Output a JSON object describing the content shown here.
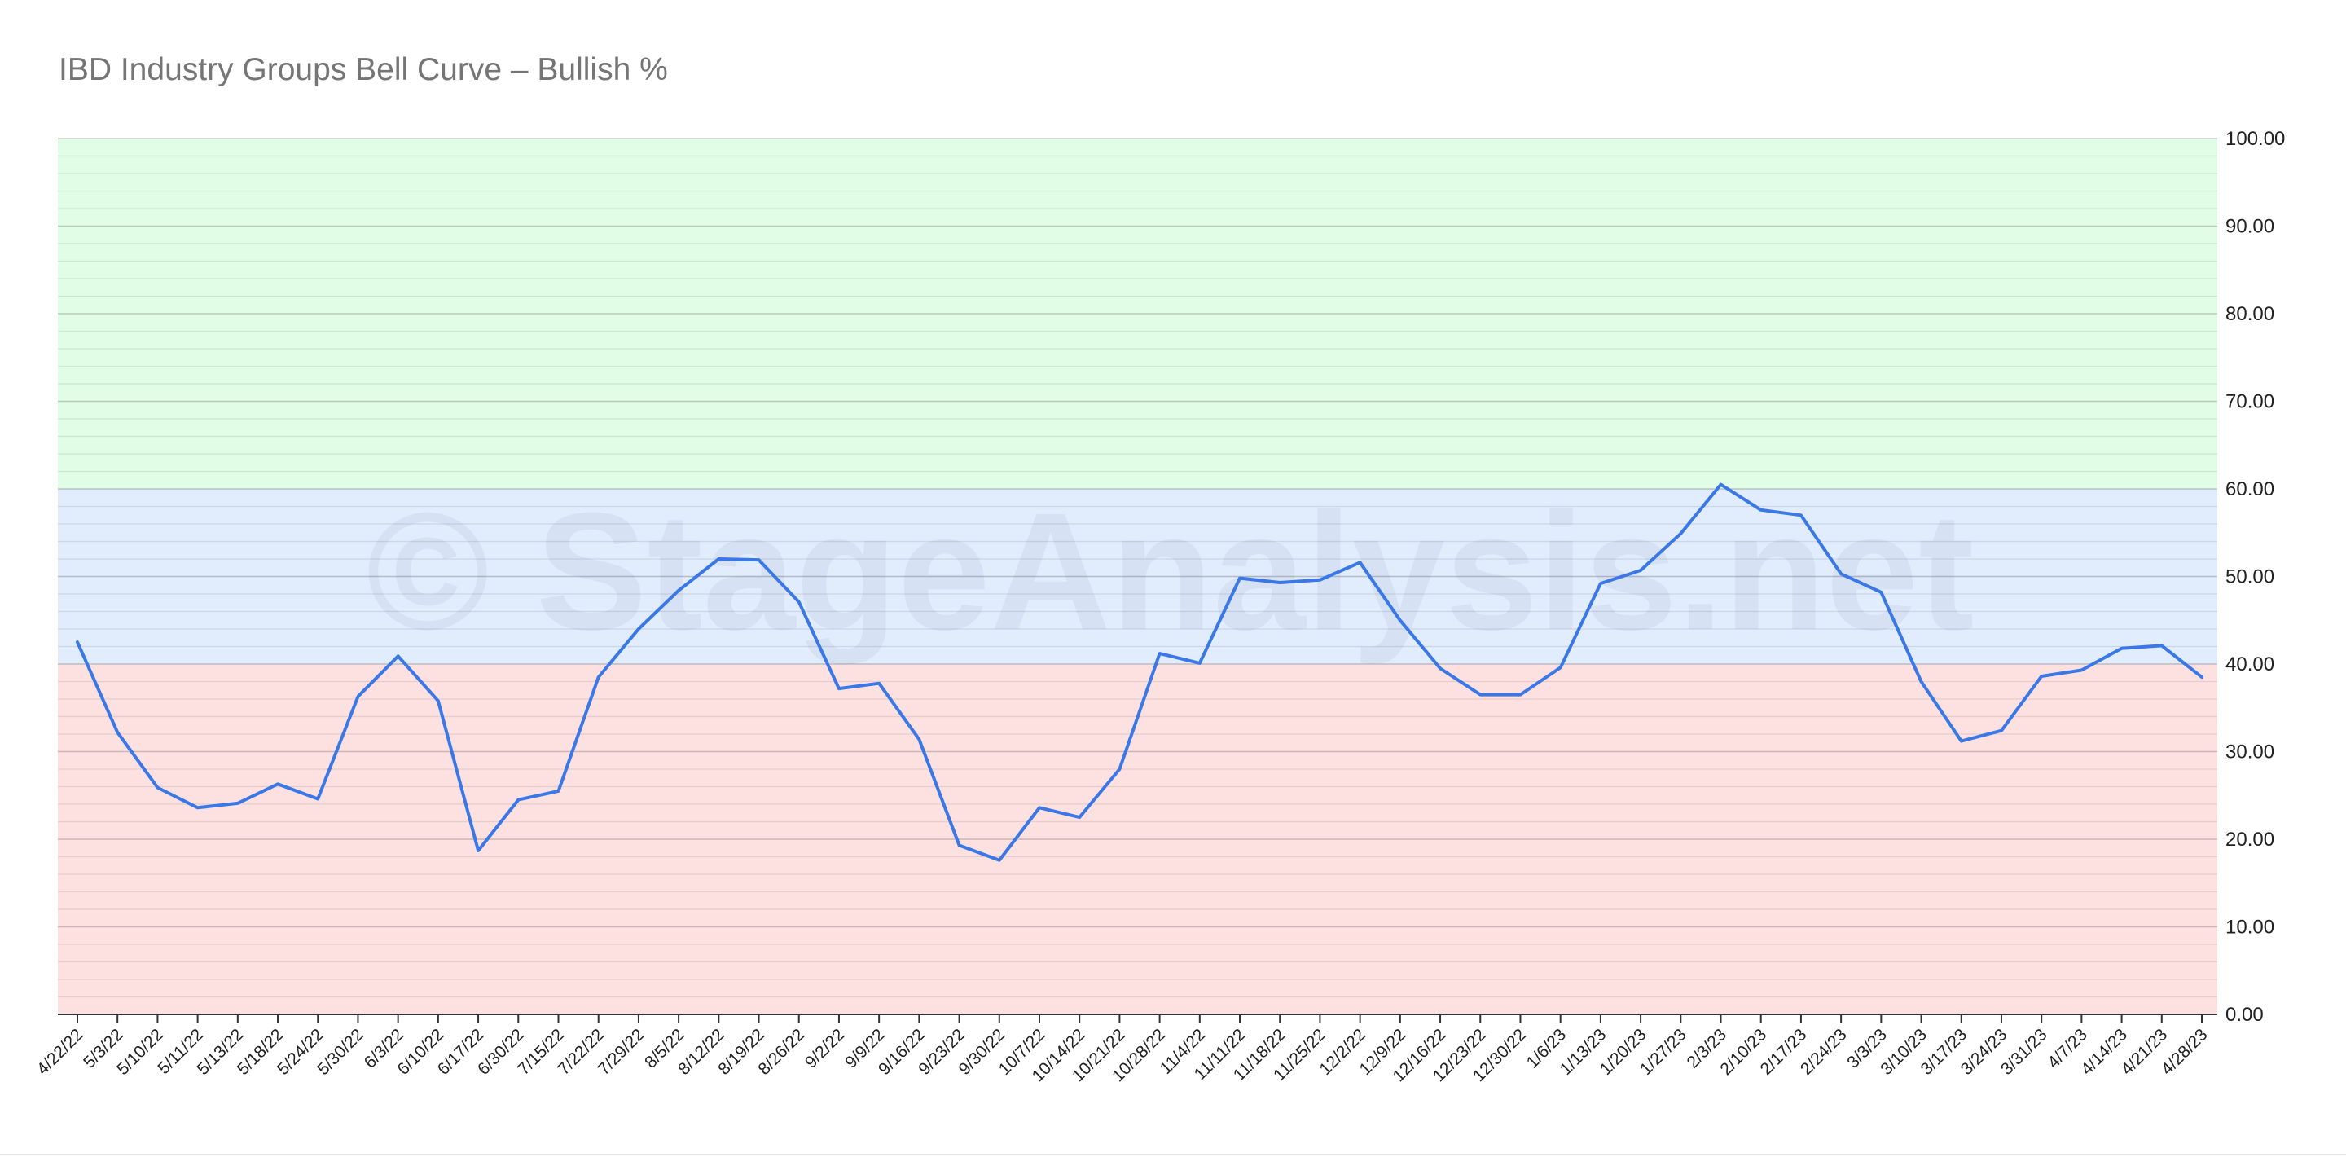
{
  "chart_data": {
    "type": "line",
    "title": "IBD Industry Groups Bell Curve – Bullish %",
    "xlabel": "",
    "ylabel": "",
    "ylim": [
      0,
      100
    ],
    "y_ticks": [
      "0.00",
      "10.00",
      "20.00",
      "30.00",
      "40.00",
      "50.00",
      "60.00",
      "70.00",
      "80.00",
      "90.00",
      "100.00"
    ],
    "y_axis_position": "right",
    "grid": true,
    "legend": "none",
    "watermark": "© StageAnalysis.net",
    "bands": [
      {
        "from": 0,
        "to": 40,
        "color": "#fde1e1"
      },
      {
        "from": 40,
        "to": 60,
        "color": "#e1ecfd"
      },
      {
        "from": 60,
        "to": 100,
        "color": "#e1fde6"
      }
    ],
    "line_color": "#3b78e7",
    "categories": [
      "4/22/22",
      "5/3/22",
      "5/10/22",
      "5/11/22",
      "5/13/22",
      "5/18/22",
      "5/24/22",
      "5/30/22",
      "6/3/22",
      "6/10/22",
      "6/17/22",
      "6/30/22",
      "7/15/22",
      "7/22/22",
      "7/29/22",
      "8/5/22",
      "8/12/22",
      "8/19/22",
      "8/26/22",
      "9/2/22",
      "9/9/22",
      "9/16/22",
      "9/23/22",
      "9/30/22",
      "10/7/22",
      "10/14/22",
      "10/21/22",
      "10/28/22",
      "11/4/22",
      "11/11/22",
      "11/18/22",
      "11/25/22",
      "12/2/22",
      "12/9/22",
      "12/16/22",
      "12/23/22",
      "12/30/22",
      "1/6/23",
      "1/13/23",
      "1/20/23",
      "1/27/23",
      "2/3/23",
      "2/10/23",
      "2/17/23",
      "2/24/23",
      "3/3/23",
      "3/10/23",
      "3/17/23",
      "3/24/23",
      "3/31/23",
      "4/7/23",
      "4/14/23",
      "4/21/23",
      "4/28/23"
    ],
    "values": [
      42.5,
      32.2,
      25.9,
      23.6,
      24.1,
      26.3,
      24.6,
      36.3,
      40.9,
      35.8,
      18.7,
      24.5,
      25.5,
      38.5,
      44.0,
      48.4,
      52.0,
      51.9,
      47.1,
      37.2,
      37.8,
      31.4,
      19.3,
      17.6,
      23.6,
      22.5,
      28.0,
      41.2,
      40.1,
      49.8,
      49.3,
      49.6,
      51.6,
      45.0,
      39.5,
      36.5,
      36.5,
      39.6,
      49.2,
      50.7,
      54.9,
      60.5,
      57.6,
      57.0,
      50.3,
      48.2,
      38.0,
      31.2,
      32.4,
      38.6,
      39.3,
      41.8,
      42.1,
      38.5
    ]
  }
}
